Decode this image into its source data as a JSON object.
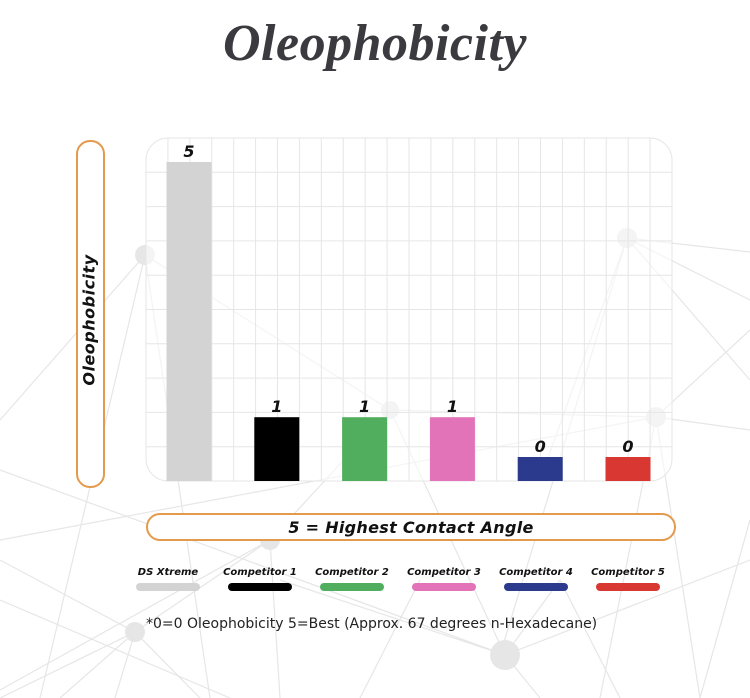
{
  "title": "Oleophobicity",
  "footnote": "*0=0 Oleophobicity 5=Best (Approx. 67 degrees n-Hexadecane)",
  "chart_data": {
    "type": "bar",
    "title": "Oleophobicity",
    "xlabel": "5 = Highest Contact Angle",
    "ylabel": "Oleophobicity",
    "categories": [
      "DS Xtreme",
      "Competitor 1",
      "Competitor 2",
      "Competitor 3",
      "Competitor 4",
      "Competitor 5"
    ],
    "values": [
      5,
      1,
      1,
      1,
      0,
      0
    ],
    "data_labels": [
      "5",
      "1",
      "1",
      "1",
      "0",
      "0"
    ],
    "colors": [
      "#d3d3d3",
      "#000000",
      "#52ae5f",
      "#e273b8",
      "#2b3a8d",
      "#d93832"
    ],
    "ylim": [
      0,
      5
    ],
    "grid": true,
    "legend": "bottom",
    "note": "*0=0 Oleophobicity 5=Best (Approx. 67 degrees n-Hexadecane)"
  },
  "legend": {
    "items": [
      {
        "label": "DS Xtreme",
        "color": "#d3d3d3"
      },
      {
        "label": "Competitor 1",
        "color": "#000000"
      },
      {
        "label": "Competitor 2",
        "color": "#52ae5f"
      },
      {
        "label": "Competitor 3",
        "color": "#e273b8"
      },
      {
        "label": "Competitor 4",
        "color": "#2b3a8d"
      },
      {
        "label": "Competitor 5",
        "color": "#d93832"
      }
    ]
  },
  "theme": {
    "accent_border": "#e49a4c",
    "grid_color": "#e6e6e6",
    "network_color": "#e2e2e2",
    "title_color": "#3a3a3f"
  }
}
